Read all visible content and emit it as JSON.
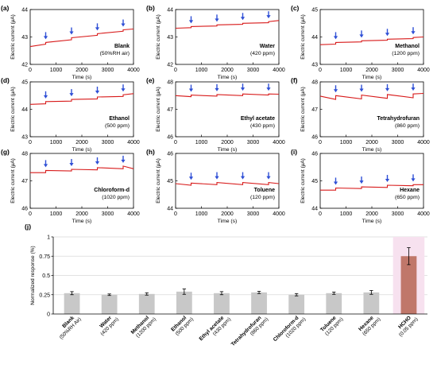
{
  "colors": {
    "trace": "#d81b1b",
    "arrow": "#2f4fd6",
    "bar": "#c8c8c8",
    "bar_highlight": "#c0776a",
    "highlight_bg": "#f7e1ef",
    "axis": "#000000",
    "grid": "#d9d9d9"
  },
  "icons": {
    "marker": "arrow-down-icon"
  },
  "chart_data": [
    {
      "type": "line",
      "panel_label": "(a)",
      "title": "Blank",
      "subtitle": "(50%RH air)",
      "xlabel": "Time (s)",
      "ylabel": "Electric current (μA)",
      "xlim": [
        0,
        4000
      ],
      "ylim": [
        42,
        44
      ],
      "xticks": [
        "0",
        "1000",
        "2000",
        "3000",
        "4000"
      ],
      "yticks": [
        "42",
        "43",
        "44"
      ],
      "exposure_times": [
        600,
        1600,
        2600,
        3600
      ],
      "x": [
        0,
        600,
        600,
        1600,
        1600,
        2600,
        2600,
        3600,
        3600,
        4000
      ],
      "y": [
        42.65,
        42.74,
        42.8,
        42.9,
        42.97,
        43.06,
        43.12,
        43.21,
        43.26,
        43.29
      ]
    },
    {
      "type": "line",
      "panel_label": "(b)",
      "title": "Water",
      "subtitle": "(420 ppm)",
      "xlabel": "Time (s)",
      "ylabel": "Electric current (μA)",
      "xlim": [
        0,
        4000
      ],
      "ylim": [
        42,
        44
      ],
      "xticks": [
        "0",
        "1000",
        "2000",
        "3000",
        "4000"
      ],
      "yticks": [
        "42",
        "43",
        "44"
      ],
      "exposure_times": [
        600,
        1600,
        2600,
        3600
      ],
      "x": [
        0,
        600,
        600,
        1600,
        1600,
        2600,
        2600,
        3600,
        3600,
        4000
      ],
      "y": [
        43.32,
        43.34,
        43.38,
        43.4,
        43.44,
        43.46,
        43.5,
        43.52,
        43.56,
        43.6
      ]
    },
    {
      "type": "line",
      "panel_label": "(c)",
      "title": "Methanol",
      "subtitle": "(1200 ppm)",
      "xlabel": "Time (s)",
      "ylabel": "Electric current (μA)",
      "xlim": [
        0,
        4000
      ],
      "ylim": [
        43,
        45
      ],
      "xticks": [
        "0",
        "1000",
        "2000",
        "3000",
        "4000"
      ],
      "yticks": [
        "43",
        "44",
        "45"
      ],
      "exposure_times": [
        600,
        1600,
        2600,
        3600
      ],
      "x": [
        0,
        600,
        600,
        1600,
        1600,
        2600,
        2600,
        3600,
        3600,
        4000
      ],
      "y": [
        43.72,
        43.74,
        43.8,
        43.82,
        43.86,
        43.88,
        43.92,
        43.94,
        43.98,
        44.0
      ]
    },
    {
      "type": "line",
      "panel_label": "(d)",
      "title": "Ethanol",
      "subtitle": "(500 ppm)",
      "xlabel": "Time (s)",
      "ylabel": "Electric current (μA)",
      "xlim": [
        0,
        4000
      ],
      "ylim": [
        43,
        45
      ],
      "xticks": [
        "0",
        "1000",
        "2000",
        "3000",
        "4000"
      ],
      "yticks": [
        "43",
        "44",
        "45"
      ],
      "exposure_times": [
        600,
        1600,
        2600,
        3600
      ],
      "x": [
        0,
        600,
        600,
        1600,
        1600,
        2600,
        2600,
        3600,
        3600,
        4000
      ],
      "y": [
        44.18,
        44.2,
        44.28,
        44.3,
        44.36,
        44.38,
        44.45,
        44.47,
        44.53,
        44.57
      ]
    },
    {
      "type": "line",
      "panel_label": "(e)",
      "title": "Ethyl acetate",
      "subtitle": "(430 ppm)",
      "xlabel": "Time (s)",
      "ylabel": "Electric current (μA)",
      "xlim": [
        0,
        4000
      ],
      "ylim": [
        46,
        48
      ],
      "xticks": [
        "0",
        "1000",
        "2000",
        "3000",
        "4000"
      ],
      "yticks": [
        "46",
        "47",
        "48"
      ],
      "exposure_times": [
        600,
        1600,
        2600,
        3600
      ],
      "x": [
        0,
        600,
        600,
        1600,
        1600,
        2600,
        2600,
        3600,
        3600,
        4000
      ],
      "y": [
        47.5,
        47.46,
        47.52,
        47.48,
        47.54,
        47.5,
        47.56,
        47.52,
        47.56,
        47.55
      ]
    },
    {
      "type": "line",
      "panel_label": "(f)",
      "title": "Tetrahydrofuran",
      "subtitle": "(860 ppm)",
      "xlabel": "Time (s)",
      "ylabel": "Electric current (μA)",
      "xlim": [
        0,
        4000
      ],
      "ylim": [
        46,
        48
      ],
      "xticks": [
        "0",
        "1000",
        "2000",
        "3000",
        "4000"
      ],
      "yticks": [
        "46",
        "47",
        "48"
      ],
      "exposure_times": [
        600,
        1600,
        2600,
        3600
      ],
      "x": [
        0,
        600,
        600,
        1600,
        1600,
        2600,
        2600,
        3600,
        3600,
        4000
      ],
      "y": [
        47.48,
        47.36,
        47.5,
        47.38,
        47.52,
        47.4,
        47.54,
        47.42,
        47.56,
        47.58
      ]
    },
    {
      "type": "line",
      "panel_label": "(g)",
      "title": "Chloroform-d",
      "subtitle": "(1020 ppm)",
      "xlabel": "Time (s)",
      "ylabel": "Electric current (μA)",
      "xlim": [
        0,
        4000
      ],
      "ylim": [
        46,
        48
      ],
      "xticks": [
        "0",
        "1000",
        "2000",
        "3000",
        "4000"
      ],
      "yticks": [
        "46",
        "47",
        "48"
      ],
      "exposure_times": [
        600,
        1600,
        2600,
        3600
      ],
      "x": [
        0,
        600,
        600,
        1600,
        1600,
        2600,
        2600,
        3600,
        3600,
        4000
      ],
      "y": [
        47.3,
        47.3,
        47.38,
        47.36,
        47.42,
        47.4,
        47.48,
        47.44,
        47.54,
        47.44
      ]
    },
    {
      "type": "line",
      "panel_label": "(h)",
      "title": "Toluene",
      "subtitle": "(120 ppm)",
      "xlabel": "Time (s)",
      "ylabel": "Electric current (μA)",
      "xlim": [
        0,
        4000
      ],
      "ylim": [
        44,
        46
      ],
      "xticks": [
        "0",
        "1000",
        "2000",
        "3000",
        "4000"
      ],
      "yticks": [
        "44",
        "45",
        "46"
      ],
      "exposure_times": [
        600,
        1600,
        2600,
        3600
      ],
      "x": [
        0,
        600,
        600,
        1600,
        1600,
        2600,
        2600,
        3600,
        3600,
        4000
      ],
      "y": [
        44.9,
        44.84,
        44.92,
        44.86,
        44.94,
        44.86,
        44.94,
        44.86,
        44.94,
        44.9
      ]
    },
    {
      "type": "line",
      "panel_label": "(i)",
      "title": "Hexane",
      "subtitle": "(650 ppm)",
      "xlabel": "Time (s)",
      "ylabel": "Electric current (μA)",
      "xlim": [
        0,
        4000
      ],
      "ylim": [
        44,
        46
      ],
      "xticks": [
        "0",
        "1000",
        "2000",
        "3000",
        "4000"
      ],
      "yticks": [
        "44",
        "45",
        "46"
      ],
      "exposure_times": [
        600,
        1600,
        2600,
        3600
      ],
      "x": [
        0,
        600,
        600,
        1600,
        1600,
        2600,
        2600,
        3600,
        3600,
        4000
      ],
      "y": [
        44.66,
        44.66,
        44.74,
        44.72,
        44.78,
        44.76,
        44.84,
        44.82,
        44.86,
        44.86
      ]
    },
    {
      "type": "bar",
      "panel_label": "(j)",
      "ylabel": "Normalized response (%)",
      "ylim": [
        0,
        1.0
      ],
      "yticks": [
        "0",
        "0.25",
        "0.5",
        "0.75",
        "1"
      ],
      "grid": true,
      "categories": [
        {
          "name": "Blank",
          "sub": "(50%RH Air)"
        },
        {
          "name": "Water",
          "sub": "(420 ppm)"
        },
        {
          "name": "Methanol",
          "sub": "(1200 ppm)"
        },
        {
          "name": "Ethanol",
          "sub": "(500 ppm)"
        },
        {
          "name": "Ethyl acetate",
          "sub": "(430 ppm)"
        },
        {
          "name": "Tetrahydrofuran",
          "sub": "(860 ppm)"
        },
        {
          "name": "Chloroform-d",
          "sub": "(1020 ppm)"
        },
        {
          "name": "Toluene",
          "sub": "(120 ppm)"
        },
        {
          "name": "Hexane",
          "sub": "(650 ppm)"
        },
        {
          "name": "HCHO",
          "sub": "(0.05 ppm)"
        }
      ],
      "values": [
        0.27,
        0.25,
        0.26,
        0.29,
        0.27,
        0.28,
        0.25,
        0.27,
        0.28,
        0.75
      ],
      "errors": [
        0.02,
        0.01,
        0.015,
        0.035,
        0.02,
        0.015,
        0.015,
        0.015,
        0.025,
        0.11
      ],
      "highlighted_category": "HCHO"
    }
  ]
}
